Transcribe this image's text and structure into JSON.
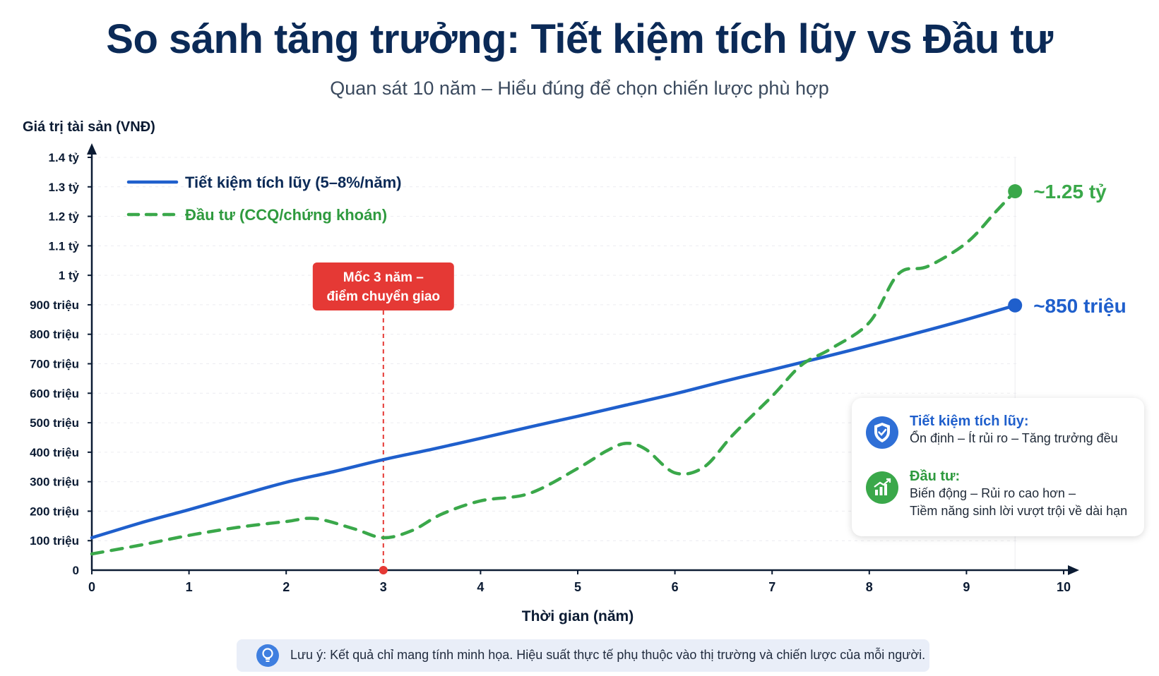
{
  "title": "So sánh tăng trưởng: Tiết kiệm tích lũy vs Đầu tư",
  "subtitle": "Quan sát 10 năm – Hiểu đúng để chọn chiến lược phù hợp",
  "chart_data": {
    "type": "line",
    "ylabel": "Giá trị tài sản (VNĐ)",
    "xlabel": "Thời gian (năm)",
    "xlim": [
      0,
      10
    ],
    "ylim": [
      0,
      1400
    ],
    "x_ticks": [
      0,
      1,
      2,
      3,
      4,
      5,
      6,
      7,
      8,
      9,
      10
    ],
    "y_ticks": [
      {
        "value": 0,
        "label": "0"
      },
      {
        "value": 100,
        "label": "100 triệu"
      },
      {
        "value": 200,
        "label": "200 triệu"
      },
      {
        "value": 300,
        "label": "300 triệu"
      },
      {
        "value": 400,
        "label": "400 triệu"
      },
      {
        "value": 500,
        "label": "500 triệu"
      },
      {
        "value": 600,
        "label": "600 triệu"
      },
      {
        "value": 700,
        "label": "700 triệu"
      },
      {
        "value": 800,
        "label": "800 triệu"
      },
      {
        "value": 900,
        "label": "900 triệu"
      },
      {
        "value": 1000,
        "label": "1 tỷ"
      },
      {
        "value": 1100,
        "label": "1.1 tỷ"
      },
      {
        "value": 1200,
        "label": "1.2 tỷ"
      },
      {
        "value": 1300,
        "label": "1.3 tỷ"
      },
      {
        "value": 1400,
        "label": "1.4 tỷ"
      }
    ],
    "grid": true,
    "legend_position": "top-left",
    "series": [
      {
        "name": "Tiết kiệm tích lũy (5–8%/năm)",
        "color": "#1f5fcc",
        "style": "solid",
        "end_label": "~850 triệu",
        "points": [
          [
            0,
            110
          ],
          [
            0.5,
            160
          ],
          [
            1,
            205
          ],
          [
            1.5,
            252
          ],
          [
            2,
            298
          ],
          [
            2.5,
            335
          ],
          [
            3,
            375
          ],
          [
            3.5,
            410
          ],
          [
            4,
            447
          ],
          [
            4.5,
            485
          ],
          [
            5,
            522
          ],
          [
            5.5,
            560
          ],
          [
            6,
            598
          ],
          [
            6.5,
            640
          ],
          [
            7,
            680
          ],
          [
            7.5,
            720
          ],
          [
            8,
            762
          ],
          [
            8.5,
            805
          ],
          [
            9,
            850
          ],
          [
            9.5,
            898
          ]
        ]
      },
      {
        "name": "Đầu tư (CCQ/chứng khoán)",
        "color": "#3aa84a",
        "style": "dashed",
        "end_label": "~1.25 tỷ",
        "points": [
          [
            0,
            55
          ],
          [
            0.5,
            85
          ],
          [
            1,
            118
          ],
          [
            1.5,
            145
          ],
          [
            2,
            165
          ],
          [
            2.3,
            175
          ],
          [
            2.7,
            140
          ],
          [
            3,
            110
          ],
          [
            3.3,
            135
          ],
          [
            3.6,
            190
          ],
          [
            4,
            235
          ],
          [
            4.5,
            260
          ],
          [
            5,
            345
          ],
          [
            5.3,
            405
          ],
          [
            5.5,
            430
          ],
          [
            5.7,
            410
          ],
          [
            6,
            330
          ],
          [
            6.3,
            350
          ],
          [
            6.6,
            460
          ],
          [
            7,
            590
          ],
          [
            7.3,
            695
          ],
          [
            7.6,
            750
          ],
          [
            8,
            840
          ],
          [
            8.3,
            1005
          ],
          [
            8.6,
            1030
          ],
          [
            9,
            1110
          ],
          [
            9.3,
            1215
          ],
          [
            9.5,
            1285
          ]
        ]
      }
    ],
    "annotation": {
      "x": 3,
      "lines": [
        "Mốc 3 năm –",
        "điểm chuyển giao"
      ],
      "color": "#e53935"
    }
  },
  "info_box": {
    "savings_title": "Tiết kiệm tích lũy:",
    "savings_desc": "Ổn định – Ít rủi ro – Tăng trưởng đều",
    "savings_icon": "shield-icon",
    "invest_title": "Đầu tư:",
    "invest_desc_1": "Biến động – Rủi ro cao hơn –",
    "invest_desc_2": "Tiềm năng sinh lời vượt trội về dài hạn",
    "invest_icon": "growth-chart-icon"
  },
  "note": {
    "icon": "lightbulb-icon",
    "text": "Lưu ý: Kết quả chỉ mang tính minh họa. Hiệu suất thực tế phụ thuộc vào thị trường và chiến lược của mỗi người."
  }
}
